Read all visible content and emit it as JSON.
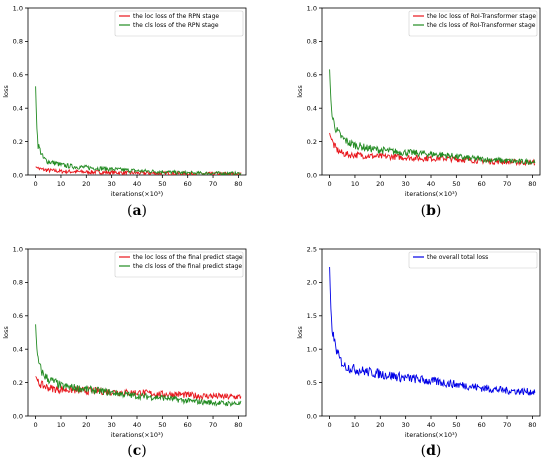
{
  "chart_data": [
    {
      "type": "line",
      "panel": "a",
      "ylabel": "loss",
      "xlabel": "iterations(×10³)",
      "xlim": [
        -3,
        83
      ],
      "ylim": [
        0.0,
        1.0
      ],
      "xticks": [
        "0",
        "10",
        "20",
        "30",
        "40",
        "50",
        "60",
        "70",
        "80"
      ],
      "yticks": [
        "0.0",
        "0.2",
        "0.4",
        "0.6",
        "0.8",
        "1.0"
      ],
      "legend": "top-right",
      "series": [
        {
          "name": "the loc loss of the RPN stage",
          "color": "#e8141a",
          "x": [
            0,
            1,
            2,
            5,
            10,
            20,
            30,
            40,
            50,
            60,
            70,
            80,
            81
          ],
          "values": [
            0.05,
            0.04,
            0.035,
            0.028,
            0.022,
            0.018,
            0.015,
            0.012,
            0.01,
            0.008,
            0.007,
            0.006,
            0.006
          ]
        },
        {
          "name": "the cls loss of the RPN stage",
          "color": "#228b22",
          "x": [
            0,
            0.5,
            1,
            2,
            3,
            5,
            8,
            10,
            15,
            20,
            25,
            30,
            35,
            40,
            45,
            50,
            55,
            60,
            65,
            70,
            75,
            80,
            81
          ],
          "values": [
            0.53,
            0.28,
            0.18,
            0.14,
            0.1,
            0.08,
            0.07,
            0.06,
            0.05,
            0.045,
            0.04,
            0.035,
            0.03,
            0.025,
            0.022,
            0.02,
            0.015,
            0.012,
            0.01,
            0.01,
            0.01,
            0.008,
            0.008
          ]
        }
      ]
    },
    {
      "type": "line",
      "panel": "b",
      "ylabel": "loss",
      "xlabel": "iterations(×10³)",
      "xlim": [
        -3,
        83
      ],
      "ylim": [
        0.0,
        1.0
      ],
      "xticks": [
        "0",
        "10",
        "20",
        "30",
        "40",
        "50",
        "60",
        "70",
        "80"
      ],
      "yticks": [
        "0.0",
        "0.2",
        "0.4",
        "0.6",
        "0.8",
        "1.0"
      ],
      "legend": "top-right",
      "series": [
        {
          "name": "the loc loss of RoI-Transformer stage",
          "color": "#e8141a",
          "x": [
            0,
            1,
            2,
            3,
            5,
            8,
            10,
            15,
            20,
            25,
            30,
            35,
            40,
            45,
            50,
            55,
            60,
            65,
            70,
            75,
            80,
            81
          ],
          "values": [
            0.25,
            0.2,
            0.17,
            0.15,
            0.13,
            0.12,
            0.12,
            0.115,
            0.11,
            0.11,
            0.105,
            0.1,
            0.1,
            0.1,
            0.095,
            0.09,
            0.085,
            0.08,
            0.08,
            0.075,
            0.075,
            0.075
          ]
        },
        {
          "name": "the cls loss of RoI-Transformer stage",
          "color": "#228b22",
          "x": [
            0,
            0.5,
            1,
            2,
            3,
            5,
            8,
            10,
            15,
            20,
            25,
            30,
            35,
            40,
            45,
            50,
            55,
            60,
            65,
            70,
            75,
            80,
            81
          ],
          "values": [
            0.63,
            0.45,
            0.35,
            0.3,
            0.26,
            0.22,
            0.19,
            0.18,
            0.16,
            0.15,
            0.14,
            0.135,
            0.13,
            0.125,
            0.12,
            0.11,
            0.1,
            0.095,
            0.09,
            0.085,
            0.08,
            0.08,
            0.08
          ]
        }
      ]
    },
    {
      "type": "line",
      "panel": "c",
      "ylabel": "loss",
      "xlabel": "iterations(×10³)",
      "xlim": [
        -3,
        83
      ],
      "ylim": [
        0.0,
        1.0
      ],
      "xticks": [
        "0",
        "10",
        "20",
        "30",
        "40",
        "50",
        "60",
        "70",
        "80"
      ],
      "yticks": [
        "0.0",
        "0.2",
        "0.4",
        "0.6",
        "0.8",
        "1.0"
      ],
      "legend": "top-right",
      "series": [
        {
          "name": "the loc loss of the final predict stage",
          "color": "#e8141a",
          "x": [
            0,
            1,
            2,
            3,
            5,
            8,
            10,
            15,
            20,
            25,
            30,
            35,
            40,
            45,
            50,
            55,
            60,
            65,
            70,
            75,
            80,
            81
          ],
          "values": [
            0.24,
            0.2,
            0.19,
            0.18,
            0.17,
            0.16,
            0.16,
            0.155,
            0.15,
            0.15,
            0.145,
            0.14,
            0.14,
            0.135,
            0.13,
            0.13,
            0.125,
            0.12,
            0.12,
            0.115,
            0.115,
            0.115
          ]
        },
        {
          "name": "the cls loss of the final predict stage",
          "color": "#228b22",
          "x": [
            0,
            0.5,
            1,
            2,
            3,
            5,
            8,
            10,
            15,
            20,
            25,
            30,
            35,
            40,
            45,
            50,
            55,
            60,
            65,
            70,
            75,
            80,
            81
          ],
          "values": [
            0.55,
            0.4,
            0.33,
            0.28,
            0.25,
            0.22,
            0.2,
            0.18,
            0.17,
            0.16,
            0.15,
            0.14,
            0.13,
            0.12,
            0.115,
            0.11,
            0.1,
            0.09,
            0.085,
            0.08,
            0.075,
            0.075,
            0.075
          ]
        }
      ]
    },
    {
      "type": "line",
      "panel": "d",
      "ylabel": "loss",
      "xlabel": "iterations(×10³)",
      "xlim": [
        -3,
        83
      ],
      "ylim": [
        0.0,
        2.5
      ],
      "xticks": [
        "0",
        "10",
        "20",
        "30",
        "40",
        "50",
        "60",
        "70",
        "80"
      ],
      "yticks": [
        "0.0",
        "0.5",
        "1.0",
        "1.5",
        "2.0",
        "2.5"
      ],
      "legend": "top-right",
      "series": [
        {
          "name": "the overall total loss",
          "color": "#0000e6",
          "x": [
            0,
            0.5,
            1,
            2,
            3,
            4,
            5,
            6,
            8,
            10,
            15,
            20,
            25,
            30,
            35,
            40,
            45,
            50,
            55,
            60,
            65,
            70,
            75,
            80,
            81
          ],
          "values": [
            2.23,
            1.6,
            1.3,
            1.1,
            0.95,
            0.85,
            0.8,
            0.75,
            0.72,
            0.7,
            0.66,
            0.63,
            0.6,
            0.57,
            0.55,
            0.52,
            0.5,
            0.47,
            0.45,
            0.42,
            0.4,
            0.38,
            0.37,
            0.36,
            0.37
          ]
        }
      ]
    }
  ],
  "captions": {
    "a": "a",
    "b": "b",
    "c": "c",
    "d": "d"
  }
}
